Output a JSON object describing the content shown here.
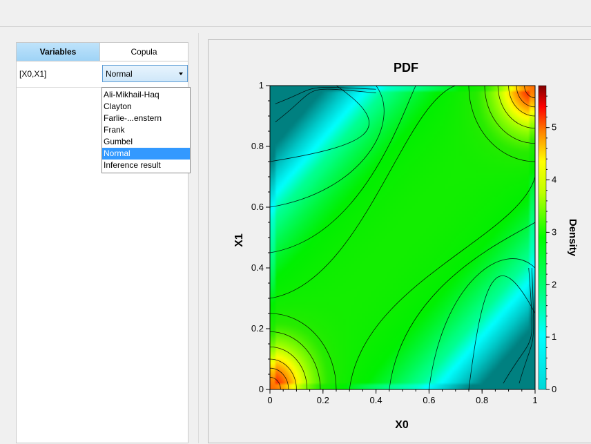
{
  "left_panel": {
    "tabs": [
      {
        "label": "Variables",
        "active": true
      },
      {
        "label": "Copula",
        "active": false
      }
    ],
    "rows": [
      {
        "variables": "[X0,X1]",
        "copula": "Normal"
      }
    ]
  },
  "dropdown": {
    "options": [
      "Ali-Mikhail-Haq",
      "Clayton",
      "Farlie-...enstern",
      "Frank",
      "Gumbel",
      "Normal",
      "Inference result"
    ],
    "selected": "Normal"
  },
  "chart_data": {
    "type": "heatmap",
    "title": "PDF",
    "xlabel": "X0",
    "ylabel": "X1",
    "xlim": [
      0,
      1
    ],
    "ylim": [
      0,
      1
    ],
    "x_ticks": [
      "0",
      "0.2",
      "0.4",
      "0.6",
      "0.8",
      "1"
    ],
    "y_ticks": [
      "0",
      "0.2",
      "0.4",
      "0.6",
      "0.8",
      "1"
    ],
    "colorbar": {
      "label": "Density",
      "range": [
        0,
        5.8
      ],
      "ticks": [
        "0",
        "1",
        "2",
        "3",
        "4",
        "5"
      ]
    },
    "contours": true,
    "colors": {
      "low": "#008b8b",
      "mid_low": "#00ffff",
      "mid": "#00ff00",
      "high": "#ff0000",
      "max": "#800000"
    }
  }
}
